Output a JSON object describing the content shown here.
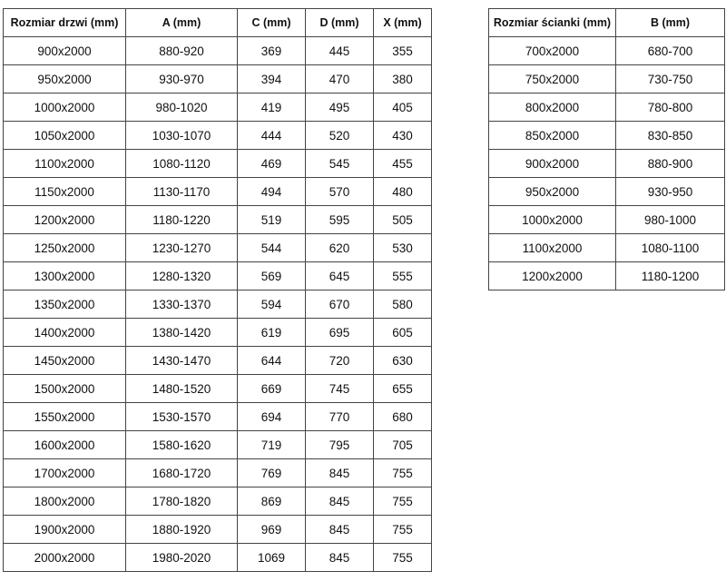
{
  "doors_table": {
    "headers": [
      "Rozmiar drzwi (mm)",
      "A (mm)",
      "C (mm)",
      "D (mm)",
      "X (mm)"
    ],
    "rows": [
      [
        "900x2000",
        "880-920",
        "369",
        "445",
        "355"
      ],
      [
        "950x2000",
        "930-970",
        "394",
        "470",
        "380"
      ],
      [
        "1000x2000",
        "980-1020",
        "419",
        "495",
        "405"
      ],
      [
        "1050x2000",
        "1030-1070",
        "444",
        "520",
        "430"
      ],
      [
        "1100x2000",
        "1080-1120",
        "469",
        "545",
        "455"
      ],
      [
        "1150x2000",
        "1130-1170",
        "494",
        "570",
        "480"
      ],
      [
        "1200x2000",
        "1180-1220",
        "519",
        "595",
        "505"
      ],
      [
        "1250x2000",
        "1230-1270",
        "544",
        "620",
        "530"
      ],
      [
        "1300x2000",
        "1280-1320",
        "569",
        "645",
        "555"
      ],
      [
        "1350x2000",
        "1330-1370",
        "594",
        "670",
        "580"
      ],
      [
        "1400x2000",
        "1380-1420",
        "619",
        "695",
        "605"
      ],
      [
        "1450x2000",
        "1430-1470",
        "644",
        "720",
        "630"
      ],
      [
        "1500x2000",
        "1480-1520",
        "669",
        "745",
        "655"
      ],
      [
        "1550x2000",
        "1530-1570",
        "694",
        "770",
        "680"
      ],
      [
        "1600x2000",
        "1580-1620",
        "719",
        "795",
        "705"
      ],
      [
        "1700x2000",
        "1680-1720",
        "769",
        "845",
        "755"
      ],
      [
        "1800x2000",
        "1780-1820",
        "869",
        "845",
        "755"
      ],
      [
        "1900x2000",
        "1880-1920",
        "969",
        "845",
        "755"
      ],
      [
        "2000x2000",
        "1980-2020",
        "1069",
        "845",
        "755"
      ]
    ]
  },
  "wall_table": {
    "headers": [
      "Rozmiar ścianki (mm)",
      "B (mm)"
    ],
    "rows": [
      [
        "700x2000",
        "680-700"
      ],
      [
        "750x2000",
        "730-750"
      ],
      [
        "800x2000",
        "780-800"
      ],
      [
        "850x2000",
        "830-850"
      ],
      [
        "900x2000",
        "880-900"
      ],
      [
        "950x2000",
        "930-950"
      ],
      [
        "1000x2000",
        "980-1000"
      ],
      [
        "1100x2000",
        "1080-1100"
      ],
      [
        "1200x2000",
        "1180-1200"
      ]
    ]
  }
}
